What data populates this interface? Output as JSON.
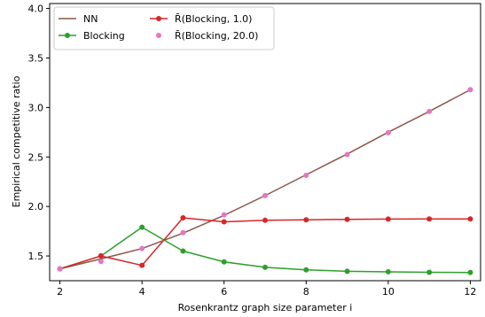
{
  "chart_data": {
    "type": "line",
    "xlabel": "Rosenkrantz graph size parameter i",
    "ylabel": "Empirical competitive ratio",
    "xlim": [
      1.75,
      12.25
    ],
    "ylim": [
      1.25,
      4.05
    ],
    "xticks": [
      2,
      4,
      6,
      8,
      10,
      12
    ],
    "yticks": [
      1.5,
      2.0,
      2.5,
      3.0,
      3.5,
      4.0
    ],
    "xtick_labels": [
      "2",
      "4",
      "6",
      "8",
      "10",
      "12"
    ],
    "ytick_labels": [
      "1.5",
      "2.0",
      "2.5",
      "3.0",
      "3.5",
      "4.0"
    ],
    "grid": false,
    "legend_position": "top-left",
    "x": [
      2,
      3,
      4,
      5,
      6,
      7,
      8,
      9,
      10,
      11,
      12
    ],
    "series": [
      {
        "name": "NN",
        "color": "#8c564b",
        "style": "line",
        "values": [
          1.37,
          1.47,
          1.575,
          1.73,
          1.91,
          2.11,
          2.32,
          2.53,
          2.75,
          2.96,
          3.18
        ]
      },
      {
        "name": "Blocking",
        "color": "#2ca02c",
        "style": "line-marker",
        "values": [
          1.37,
          1.5,
          1.79,
          1.55,
          1.44,
          1.385,
          1.36,
          1.345,
          1.34,
          1.335,
          1.333
        ]
      },
      {
        "name": "R̄(Blocking, 1.0)",
        "color": "#d62728",
        "style": "line-marker",
        "values": [
          1.37,
          1.5,
          1.405,
          1.885,
          1.845,
          1.86,
          1.865,
          1.87,
          1.873,
          1.874,
          1.874
        ]
      },
      {
        "name": "R̄(Blocking, 20.0)",
        "color": "#e377c2",
        "style": "marker",
        "values": [
          1.37,
          1.445,
          1.575,
          1.735,
          1.915,
          2.11,
          2.315,
          2.525,
          2.745,
          2.96,
          3.18
        ]
      }
    ]
  }
}
